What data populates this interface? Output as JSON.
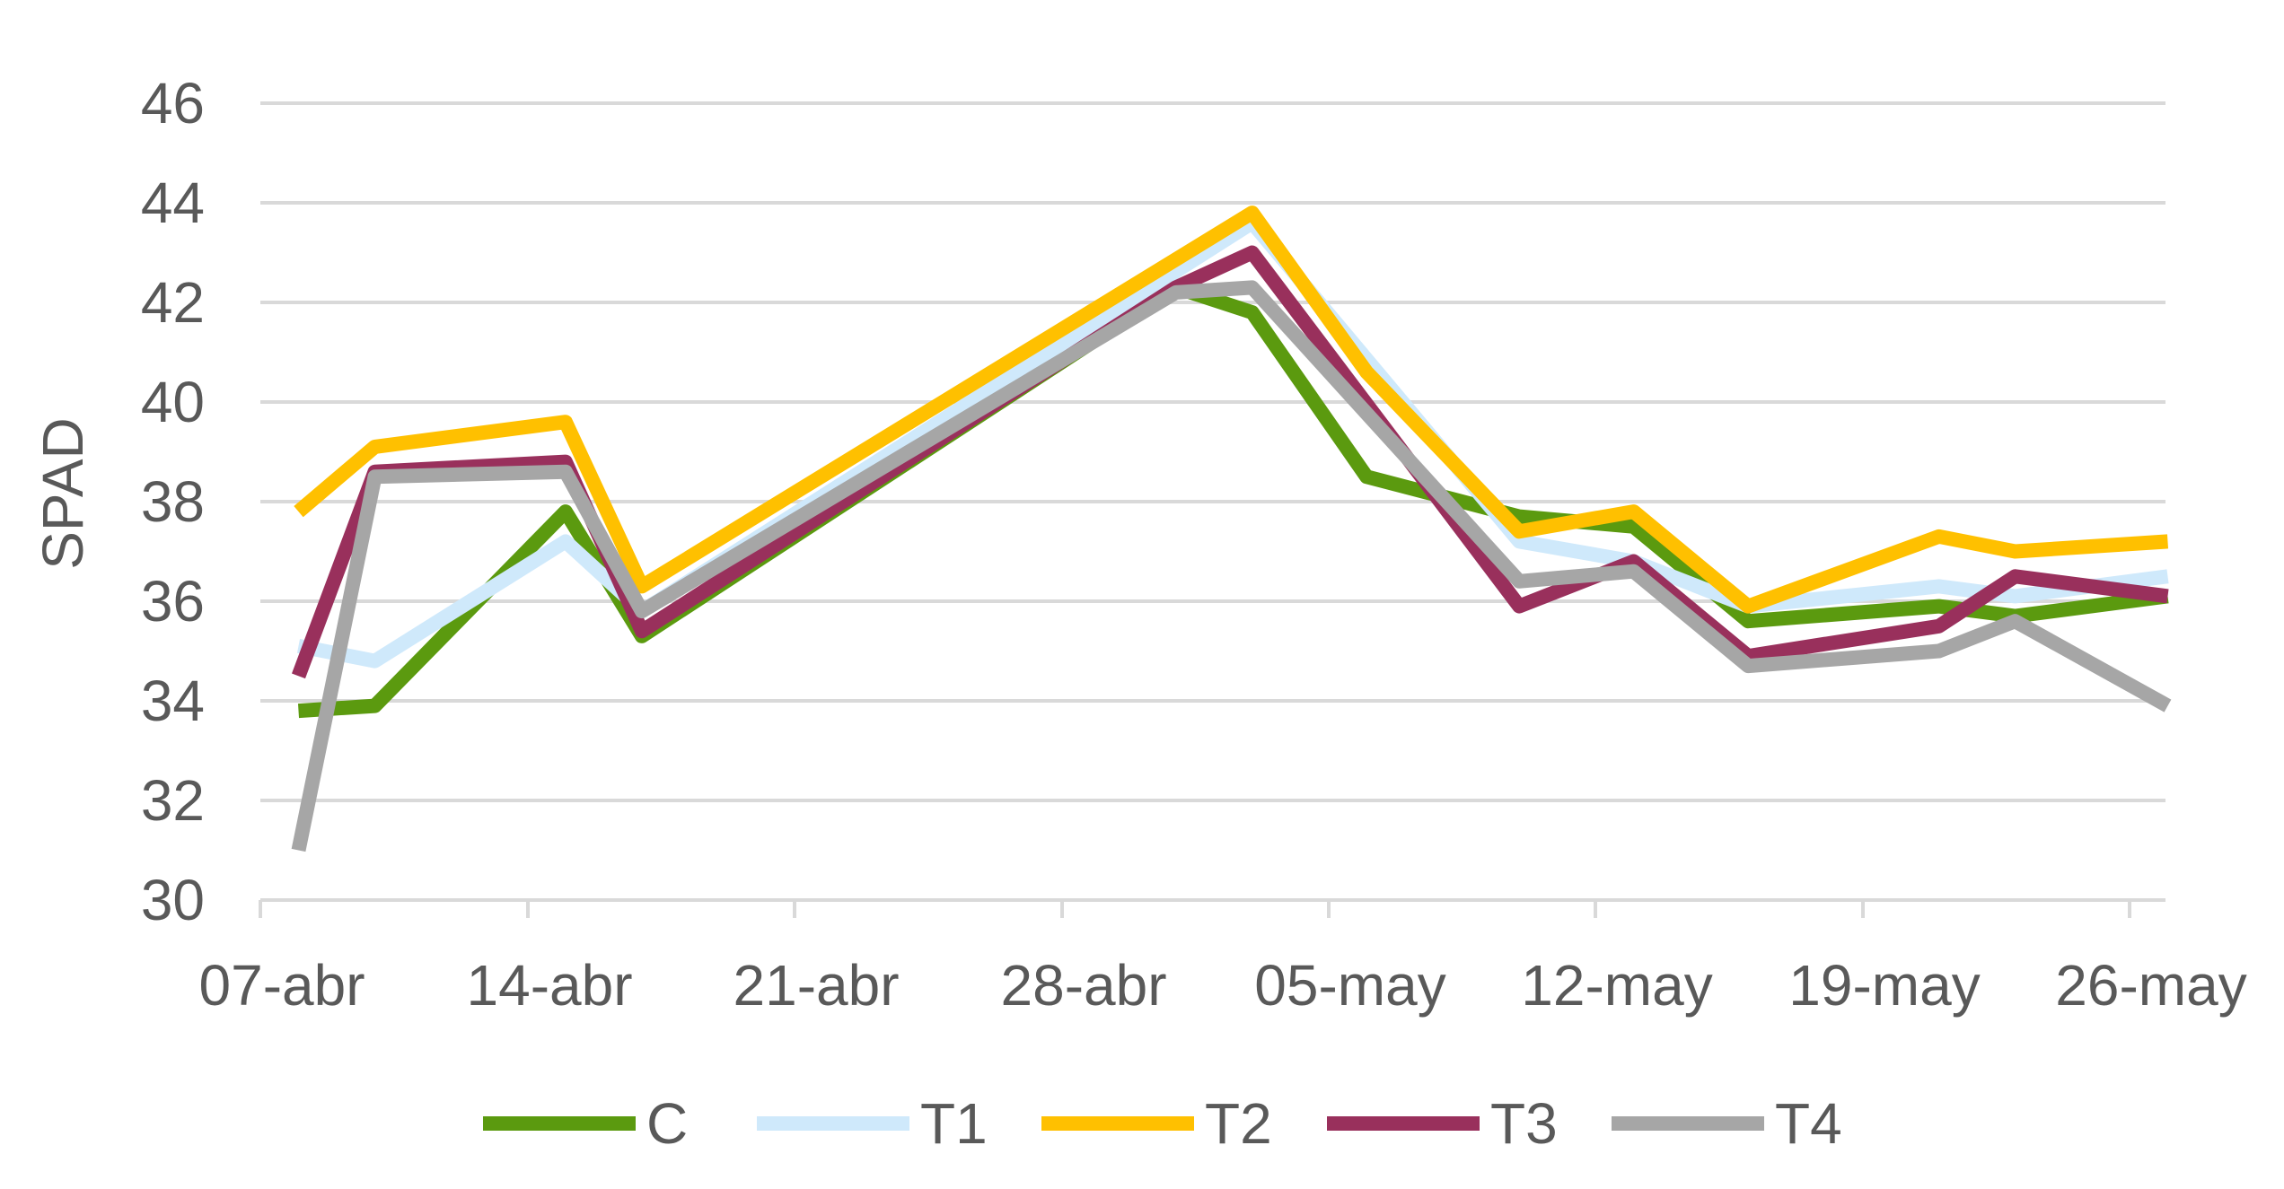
{
  "chart_data": {
    "type": "line",
    "title": "",
    "xlabel": "",
    "ylabel": "SPAD",
    "x_ticks": [
      "07-abr",
      "14-abr",
      "21-abr",
      "28-abr",
      "05-may",
      "12-may",
      "19-may",
      "26-may"
    ],
    "ylim": [
      30,
      46
    ],
    "y_ticks": [
      30,
      32,
      34,
      36,
      38,
      40,
      42,
      44,
      46
    ],
    "grid": true,
    "legend_position": "bottom",
    "series": [
      {
        "name": "C",
        "color": "#5b9a0f",
        "points": [
          [
            "08-abr",
            33.8
          ],
          [
            "10-abr",
            33.9
          ],
          [
            "15-abr",
            37.8
          ],
          [
            "17-abr",
            35.3
          ],
          [
            "01-may",
            42.3
          ],
          [
            "03-may",
            41.8
          ],
          [
            "06-may",
            38.5
          ],
          [
            "10-may",
            37.7
          ],
          [
            "13-may",
            37.5
          ],
          [
            "16-may",
            35.6
          ],
          [
            "21-may",
            35.9
          ],
          [
            "23-may",
            35.7
          ],
          [
            "27-may",
            36.1
          ]
        ]
      },
      {
        "name": "T1",
        "color": "#cfe9fb",
        "points": [
          [
            "08-abr",
            35.1
          ],
          [
            "10-abr",
            34.8
          ],
          [
            "15-abr",
            37.2
          ],
          [
            "17-abr",
            35.8
          ],
          [
            "03-may",
            43.6
          ],
          [
            "10-may",
            37.2
          ],
          [
            "13-may",
            36.8
          ],
          [
            "16-may",
            35.9
          ],
          [
            "21-may",
            36.3
          ],
          [
            "23-may",
            36.1
          ],
          [
            "27-may",
            36.5
          ]
        ]
      },
      {
        "name": "T2",
        "color": "#ffc000",
        "points": [
          [
            "08-abr",
            37.8
          ],
          [
            "10-abr",
            39.1
          ],
          [
            "15-abr",
            39.6
          ],
          [
            "17-abr",
            36.3
          ],
          [
            "03-may",
            43.8
          ],
          [
            "06-may",
            40.6
          ],
          [
            "10-may",
            37.4
          ],
          [
            "13-may",
            37.8
          ],
          [
            "16-may",
            35.9
          ],
          [
            "21-may",
            37.3
          ],
          [
            "23-may",
            37.0
          ],
          [
            "27-may",
            37.2
          ]
        ]
      },
      {
        "name": "T3",
        "color": "#99305c",
        "points": [
          [
            "08-abr",
            34.5
          ],
          [
            "10-abr",
            38.6
          ],
          [
            "15-abr",
            38.8
          ],
          [
            "17-abr",
            35.4
          ],
          [
            "01-may",
            42.3
          ],
          [
            "03-may",
            43.0
          ],
          [
            "10-may",
            35.9
          ],
          [
            "13-may",
            36.8
          ],
          [
            "16-may",
            34.9
          ],
          [
            "21-may",
            35.5
          ],
          [
            "23-may",
            36.5
          ],
          [
            "27-may",
            36.1
          ]
        ]
      },
      {
        "name": "T4",
        "color": "#a6a6a6",
        "points": [
          [
            "08-abr",
            31.0
          ],
          [
            "10-abr",
            38.5
          ],
          [
            "15-abr",
            38.6
          ],
          [
            "17-abr",
            35.8
          ],
          [
            "01-may",
            42.2
          ],
          [
            "03-may",
            42.3
          ],
          [
            "10-may",
            36.4
          ],
          [
            "13-may",
            36.6
          ],
          [
            "16-may",
            34.7
          ],
          [
            "21-may",
            35.0
          ],
          [
            "23-may",
            35.6
          ],
          [
            "27-may",
            33.9
          ]
        ]
      }
    ]
  }
}
